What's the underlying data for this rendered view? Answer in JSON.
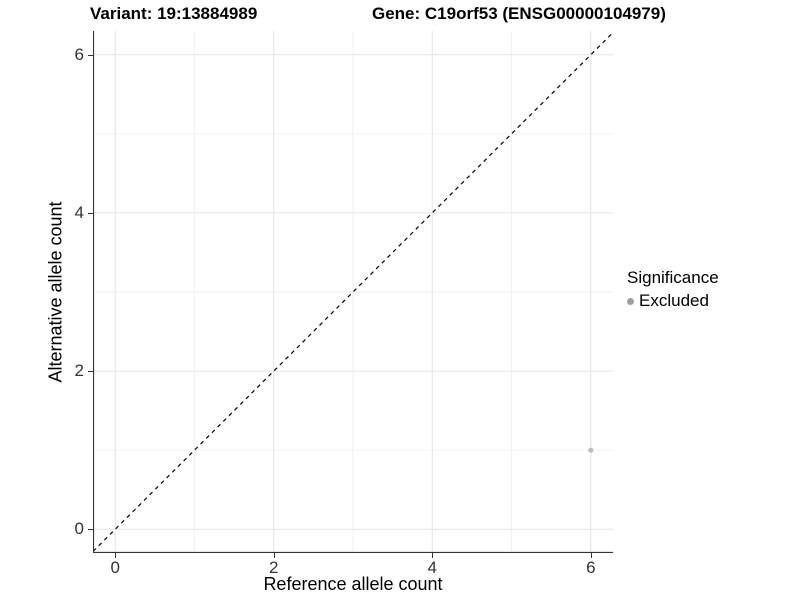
{
  "chart_data": {
    "type": "scatter",
    "title_left": "Variant: 19:13884989",
    "title_right": "Gene: C19orf53 (ENSG00000104979)",
    "xlabel": "Reference allele count",
    "ylabel": "Alternative allele count",
    "xlim": [
      -0.28,
      6.28
    ],
    "ylim": [
      -0.3,
      6.3
    ],
    "x_major_ticks": [
      0,
      2,
      4,
      6
    ],
    "y_major_ticks": [
      0,
      2,
      4,
      6
    ],
    "x_minor_gridlines": [
      1,
      3,
      5
    ],
    "y_minor_gridlines": [
      1,
      3,
      5
    ],
    "grid": "major+minor",
    "panel_border": false,
    "identity_line": {
      "equation": "y = x",
      "style": "dashed",
      "color": "#000000"
    },
    "series": [
      {
        "name": "Excluded",
        "color": "#bebebe",
        "points": [
          [
            6,
            1
          ]
        ]
      }
    ],
    "legend": {
      "title": "Significance",
      "position": "right",
      "entries": [
        {
          "label": "Excluded",
          "color": "#9e9e9e"
        }
      ]
    }
  },
  "colors": {
    "background": "#ffffff",
    "grid_major": "#e4e4e4",
    "grid_minor": "#f2f2f2",
    "axis_line": "#333333",
    "axis_text": "#333333",
    "title_text": "#000000",
    "identity_line": "#000000",
    "point": "#bebebe",
    "legend_point": "#9e9e9e"
  }
}
